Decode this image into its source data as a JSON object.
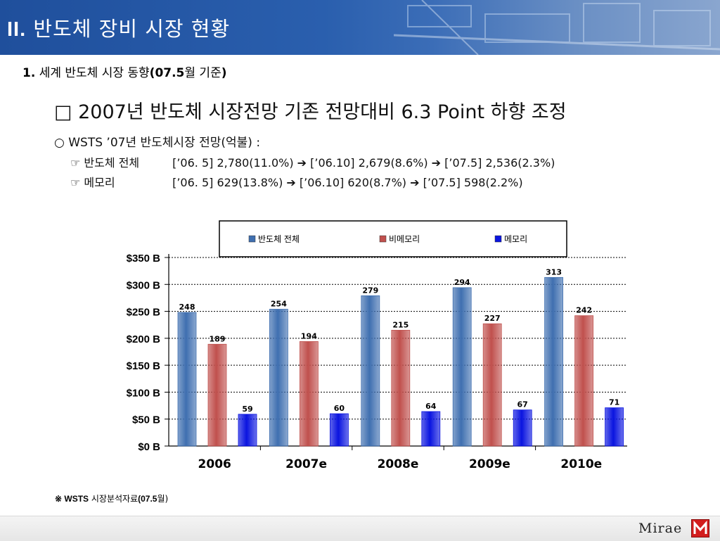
{
  "header": {
    "num": "II.",
    "title": "반도체 장비 시장 현황"
  },
  "subtitle": {
    "num": "1.",
    "text": " 세계 반도체 시장 동향",
    "paren": "(07.5",
    "tail": "월 기준",
    "close": ")"
  },
  "headline": "□ 2007년 반도체 시장전망 기존 전망대비 6.3 Point 하향 조정",
  "bullet": "○ WSTS ’07년 반도체시장 전망(억불) :",
  "lines": [
    {
      "label": "☞ 반도체 전체",
      "a": "[’06. 5] 2,780(11.0%)",
      "b": "[’06.10] 2,679(8.6%)",
      "c": "[’07.5] 2,536(2.3%)"
    },
    {
      "label": "☞ 메모리",
      "a": "[’06. 5] 629(13.8%)",
      "b": "[’06.10] 620(8.7%)",
      "c": "[’07.5] 598(2.2%)"
    }
  ],
  "arrow": "➔",
  "note": {
    "sym": "※ WSTS",
    "text": " 시장분석자료",
    "paren": "(07.5",
    "tail": "월)"
  },
  "logo": "Mirae",
  "colors": {
    "total": "#3f6fb0",
    "nonmemory": "#c0504d",
    "memory": "#0a14e0",
    "header": "#2a5fae"
  },
  "chart_data": {
    "type": "bar",
    "categories": [
      "2006",
      "2007e",
      "2008e",
      "2009e",
      "2010e"
    ],
    "series": [
      {
        "name": "반도체 전체",
        "values": [
          248,
          254,
          279,
          294,
          313
        ]
      },
      {
        "name": "비메모리",
        "values": [
          189,
          194,
          215,
          227,
          242
        ]
      },
      {
        "name": "메모리",
        "values": [
          59,
          60,
          64,
          67,
          71
        ]
      }
    ],
    "yticks": [
      "$0 B",
      "$50 B",
      "$100 B",
      "$150 B",
      "$200 B",
      "$250 B",
      "$300 B",
      "$350 B"
    ],
    "ylim": [
      0,
      350
    ],
    "grid": true,
    "legend_placement": "top"
  }
}
